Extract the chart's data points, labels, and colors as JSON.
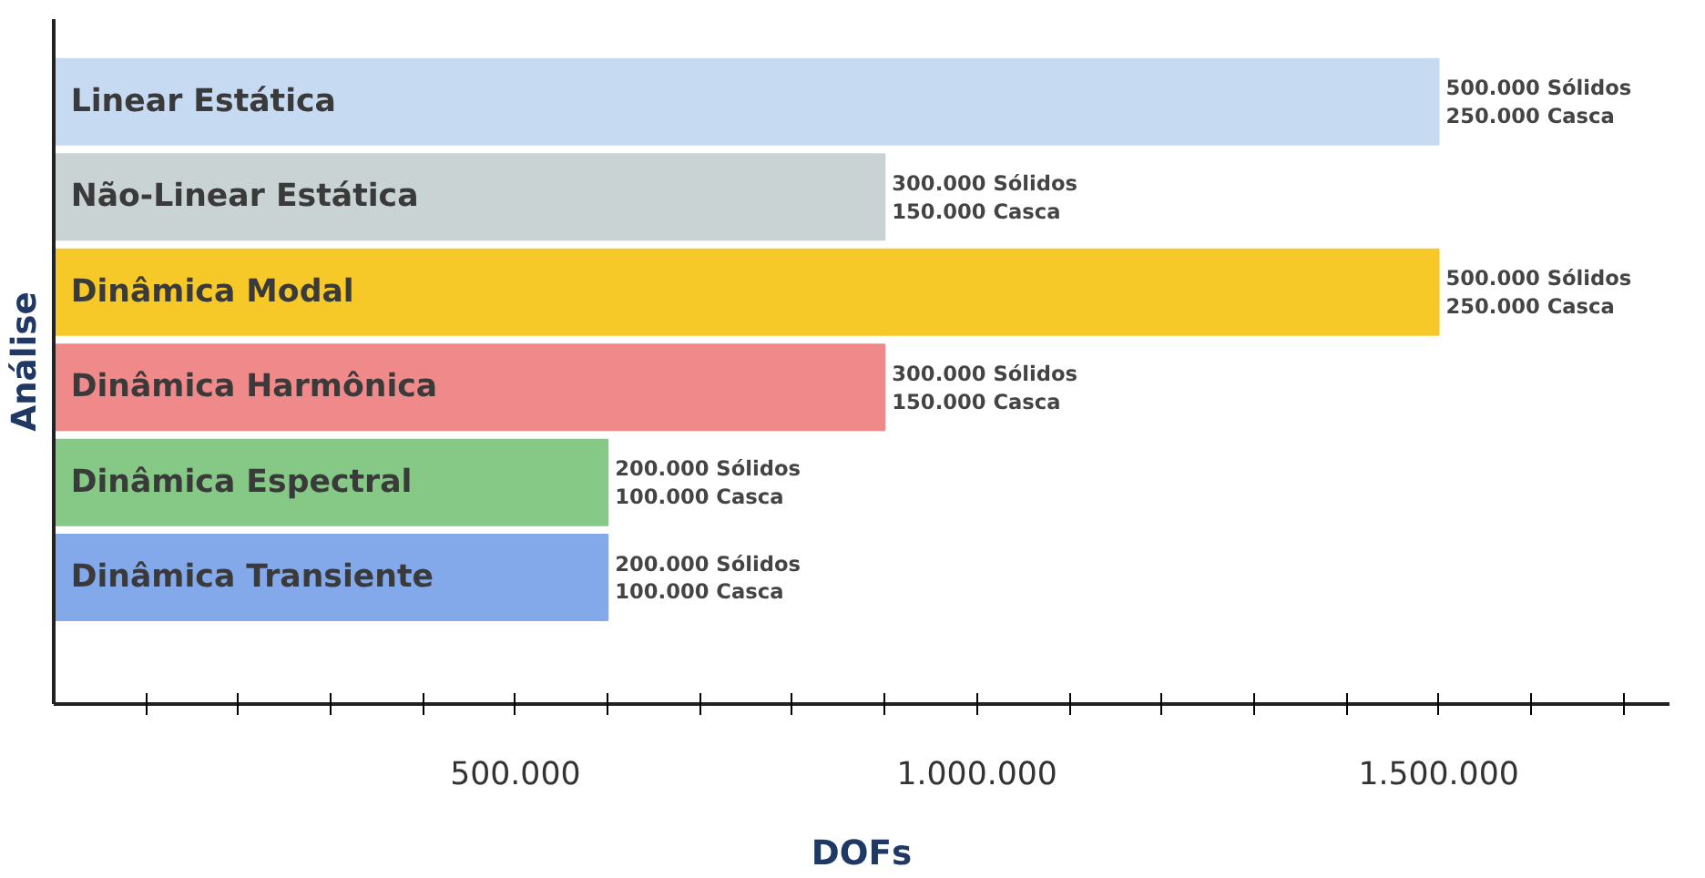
{
  "chart_data": {
    "type": "bar",
    "orientation": "horizontal",
    "xlabel": "DOFs",
    "ylabel": "Análise",
    "categories": [
      "Linear Estática",
      "Não-Linear Estática",
      "Dinâmica Modal",
      "Dinâmica Harmônica",
      "Dinâmica Espectral",
      "Dinâmica Transiente"
    ],
    "values": [
      1500000,
      900000,
      1500000,
      900000,
      600000,
      600000
    ],
    "colors": [
      "#c6daf2",
      "#c9d3d3",
      "#f6c928",
      "#f08a8a",
      "#86c987",
      "#84a9ea"
    ],
    "annotations": [
      {
        "text": "500.000 Sólidos\n250.000 Casca",
        "x": 1500000,
        "y": "Linear Estática"
      },
      {
        "text": "300.000 Sólidos\n150.000 Casca",
        "x": 900000,
        "y": "Não-Linear Estática"
      },
      {
        "text": "500.000 Sólidos\n250.000 Casca",
        "x": 1500000,
        "y": "Dinâmica Modal"
      },
      {
        "text": "300.000 Sólidos\n150.000 Casca",
        "x": 900000,
        "y": "Dinâmica Harmônica"
      },
      {
        "text": "200.000 Sólidos\n100.000 Casca",
        "x": 600000,
        "y": "Dinâmica Espectral"
      },
      {
        "text": "200.000 Sólidos\n100.000 Casca",
        "x": 600000,
        "y": "Dinâmica Transiente"
      }
    ],
    "xlim": [
      0,
      1750000
    ],
    "xticks": [
      {
        "value": 100000,
        "label": null
      },
      {
        "value": 200000,
        "label": null
      },
      {
        "value": 300000,
        "label": null
      },
      {
        "value": 400000,
        "label": null
      },
      {
        "value": 500000,
        "label": "500.000"
      },
      {
        "value": 600000,
        "label": null
      },
      {
        "value": 700000,
        "label": null
      },
      {
        "value": 800000,
        "label": null
      },
      {
        "value": 900000,
        "label": null
      },
      {
        "value": 1000000,
        "label": "1.000.000"
      },
      {
        "value": 1100000,
        "label": null
      },
      {
        "value": 1200000,
        "label": null
      },
      {
        "value": 1300000,
        "label": null
      },
      {
        "value": 1400000,
        "label": null
      },
      {
        "value": 1500000,
        "label": "1.500.000"
      },
      {
        "value": 1600000,
        "label": null
      },
      {
        "value": 1700000,
        "label": null
      }
    ],
    "grid": false
  }
}
